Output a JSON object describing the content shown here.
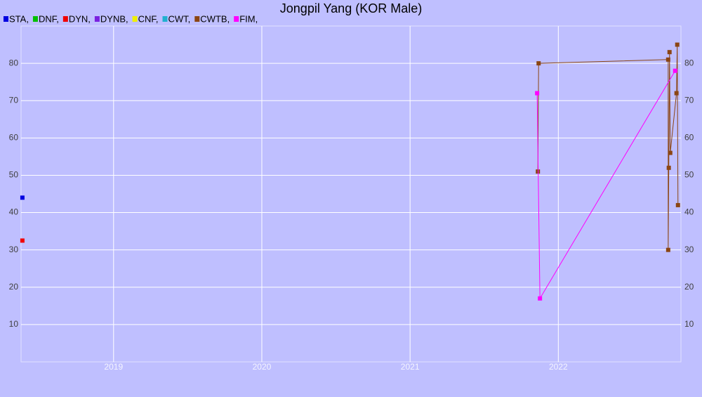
{
  "chart_data": {
    "type": "line",
    "title": "Jongpil Yang (KOR Male)",
    "xlim": [
      2018.376,
      2022.827
    ],
    "xticks": [
      2019,
      2020,
      2021,
      2022
    ],
    "ylim": [
      0,
      90
    ],
    "yticks": [
      10,
      20,
      30,
      40,
      50,
      60,
      70,
      80
    ],
    "grid": true,
    "series": [
      {
        "name": "STA,",
        "color": "#0000e0",
        "x": [
          2018.385
        ],
        "values": [
          44
        ]
      },
      {
        "name": "DNF,",
        "color": "#00c000",
        "x": [],
        "values": []
      },
      {
        "name": "DYN,",
        "color": "#f00000",
        "x": [
          2018.385
        ],
        "values": [
          32.5
        ]
      },
      {
        "name": "DYNB,",
        "color": "#7a20e0",
        "x": [],
        "values": []
      },
      {
        "name": "CNF,",
        "color": "#f0f000",
        "x": [],
        "values": []
      },
      {
        "name": "CWT,",
        "color": "#20b0d0",
        "x": [],
        "values": []
      },
      {
        "name": "CWTB,",
        "color": "#8b4513",
        "x": [
          2021.862,
          2021.867,
          2022.741,
          2022.741,
          2022.745,
          2022.75,
          2022.755,
          2022.797,
          2022.802,
          2022.807
        ],
        "values": [
          51,
          80,
          81,
          30,
          52,
          83,
          56,
          72,
          85,
          42
        ]
      },
      {
        "name": "FIM,",
        "color": "#ff00ff",
        "x": [
          2021.857,
          2021.876,
          2022.788
        ],
        "values": [
          72,
          17,
          78
        ]
      }
    ]
  }
}
